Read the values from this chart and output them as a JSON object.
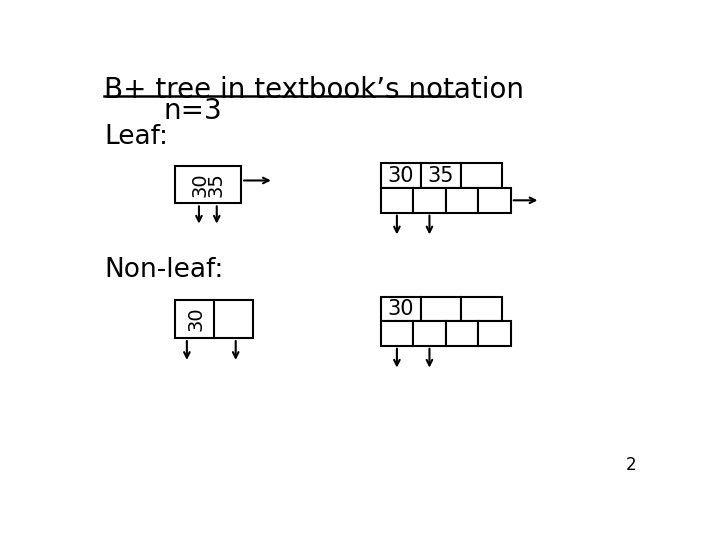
{
  "title_line1": "B+ tree in textbook’s notation",
  "title_line2": "n=3",
  "leaf_label": "Leaf:",
  "nonleaf_label": "Non-leaf:",
  "page_number": "2",
  "bg_color": "#ffffff",
  "fg_color": "#000000"
}
